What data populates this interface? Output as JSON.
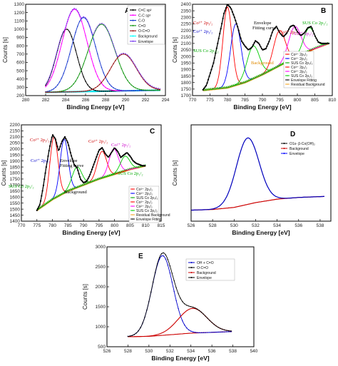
{
  "chart_data": [
    {
      "panel": "A",
      "type": "line",
      "title": "",
      "xlabel": "Binding Energy [eV]",
      "ylabel": "Counts [s]",
      "xlim": [
        280,
        294
      ],
      "ylim": [
        200,
        1300
      ],
      "xticks": [
        280,
        282,
        284,
        286,
        288,
        290,
        292,
        294
      ],
      "yticks": [
        200,
        300,
        400,
        500,
        600,
        700,
        800,
        900,
        1000,
        1100,
        1200,
        1300
      ],
      "legend_position": "top-right",
      "background_color": "#00ffff",
      "series": [
        {
          "name": "C=C  sp²",
          "color": "#000000",
          "kind": "gauss",
          "center": 284.1,
          "height": 1000,
          "sigma": 1.0
        },
        {
          "name": "C-C  sp³",
          "color": "#ff00ff",
          "kind": "gauss",
          "center": 284.9,
          "height": 1240,
          "sigma": 1.25
        },
        {
          "name": "C-O",
          "color": "#1f3fd0",
          "kind": "gauss",
          "center": 285.8,
          "height": 1140,
          "sigma": 1.2
        },
        {
          "name": "C=O",
          "color": "#1a9a1a",
          "kind": "gauss",
          "center": 287.6,
          "height": 1060,
          "sigma": 1.35
        },
        {
          "name": "O-C=O",
          "color": "#9b1b1b",
          "kind": "gauss",
          "center": 289.8,
          "height": 700,
          "sigma": 1.3
        },
        {
          "name": "Background",
          "color": "#00ffff",
          "kind": "background"
        },
        {
          "name": "Envelope",
          "color": "#7b3ff0",
          "kind": "envelope"
        }
      ]
    },
    {
      "panel": "B",
      "type": "line",
      "title": "",
      "xlabel": "Binding Energy [eV]",
      "ylabel": "Counts [s]",
      "xlim": [
        770,
        810
      ],
      "ylim": [
        1700,
        2400
      ],
      "xticks": [
        770,
        775,
        780,
        785,
        790,
        795,
        800,
        805,
        810
      ],
      "yticks": [
        1700,
        1750,
        1800,
        1850,
        1900,
        1950,
        2000,
        2050,
        2100,
        2150,
        2200,
        2250,
        2300,
        2350,
        2400
      ],
      "legend_position": "bottom-right",
      "background": {
        "x": [
          773,
          780,
          785,
          790,
          795,
          800,
          805,
          809
        ],
        "y": [
          1740,
          1760,
          1800,
          1860,
          1930,
          2000,
          2060,
          2100
        ]
      },
      "envelope": {
        "x": [
          773,
          774,
          776,
          778,
          779,
          780,
          781,
          782,
          783,
          784,
          785,
          786,
          787,
          788,
          789,
          790,
          791,
          792,
          793,
          794,
          795,
          796,
          797,
          798,
          799,
          800,
          801,
          802,
          803,
          804,
          805,
          806,
          807,
          808,
          809
        ],
        "y": [
          1745,
          1780,
          1950,
          2200,
          2330,
          2400,
          2370,
          2300,
          2220,
          2120,
          2080,
          2050,
          2070,
          2120,
          2100,
          2050,
          2060,
          2120,
          2200,
          2230,
          2180,
          2150,
          2180,
          2230,
          2240,
          2190,
          2160,
          2180,
          2220,
          2230,
          2160,
          2110,
          2100,
          2100,
          2100
        ]
      },
      "peaks": [
        {
          "name": "Co³⁺ 2p₃/₂",
          "color": "#ff0000",
          "center": 780.0,
          "height": 2380,
          "sigma": 1.3
        },
        {
          "name": "Co²⁺ 2p₃/₂",
          "color": "#0000ff",
          "center": 782.4,
          "height": 2250,
          "sigma": 1.5
        },
        {
          "name": "SUS Co 2p₃/₂",
          "color": "#00cc00",
          "center": 787.5,
          "height": 2080,
          "sigma": 1.8
        },
        {
          "name": "Co³⁺ 2p₁/₂",
          "color": "#ff0000",
          "center": 795.0,
          "height": 2200,
          "sigma": 1.7
        },
        {
          "name": "Co²⁺ 2p₁/₂",
          "color": "#ff00ff",
          "center": 799.4,
          "height": 2230,
          "sigma": 1.8
        },
        {
          "name": "SUS Co 2p₁/₂",
          "color": "#00cc00",
          "center": 803.5,
          "height": 2220,
          "sigma": 1.6
        }
      ],
      "legend_entries": [
        "Co³⁺ 2p₃/₂",
        "Co²⁺ 2p₃/₂",
        "SUS Co 2p₃/₂",
        "Co³⁺ 2p₁/₂",
        "Co²⁺ 2p₁/₂",
        "SUS Co 2p₁/₂",
        "Envelope Fitting",
        "Residual Background"
      ],
      "annotations": [
        "Co³⁺ 2p₃/₂",
        "Co²⁺ 2p₃/₂",
        "SUS Co 2p₃/₂",
        "Envelope\nFitting curve",
        "Co³⁺ 2p₁/₂",
        "Co²⁺ 2p₁/₂",
        "SUS Co 2p₁/₂",
        "Background"
      ]
    },
    {
      "panel": "C",
      "type": "line",
      "title": "",
      "xlabel": "Binding Energy [eV]",
      "ylabel": "Counts [s]",
      "xlim": [
        770,
        815
      ],
      "ylim": [
        1400,
        2200
      ],
      "xticks": [
        770,
        775,
        780,
        785,
        790,
        795,
        800,
        805,
        810,
        815
      ],
      "yticks": [
        1400,
        1450,
        1500,
        1550,
        1600,
        1650,
        1700,
        1750,
        1800,
        1850,
        1900,
        1950,
        2000,
        2050,
        2100,
        2150,
        2200
      ],
      "legend_position": "bottom-right",
      "background": {
        "x": [
          775,
          780,
          785,
          790,
          795,
          800,
          805,
          810
        ],
        "y": [
          1490,
          1580,
          1650,
          1700,
          1750,
          1790,
          1830,
          1860
        ]
      },
      "envelope": {
        "x": [
          775,
          776,
          777,
          778,
          779,
          780,
          781,
          782,
          783,
          784,
          785,
          786,
          787,
          788,
          789,
          790,
          791,
          792,
          793,
          794,
          795,
          796,
          797,
          798,
          799,
          800,
          801,
          802,
          803,
          804,
          805,
          806,
          807,
          808,
          809,
          810
        ],
        "y": [
          1490,
          1540,
          1680,
          1850,
          2000,
          2120,
          2080,
          1980,
          2060,
          2100,
          2050,
          1950,
          1870,
          1840,
          1750,
          1720,
          1730,
          1780,
          1850,
          1920,
          1990,
          2010,
          1960,
          1930,
          1970,
          2010,
          1980,
          1930,
          1950,
          1970,
          1940,
          1900,
          1880,
          1870,
          1860,
          1860
        ]
      },
      "peaks": [
        {
          "name": "Co³⁺ 2p₃/₂",
          "color": "#ff0000",
          "center": 780.5,
          "height": 2100,
          "sigma": 1.3
        },
        {
          "name": "Co²⁺ 2p₃/₂",
          "color": "#0000ff",
          "center": 783.8,
          "height": 2080,
          "sigma": 1.3
        },
        {
          "name": "SUS Co 2p₃/₂",
          "color": "#00cc00",
          "center": 788.0,
          "height": 1850,
          "sigma": 1.6
        },
        {
          "name": "Co³⁺ 2p₁/₂",
          "color": "#ff0000",
          "center": 796.0,
          "height": 1980,
          "sigma": 1.5
        },
        {
          "name": "Co²⁺ 2p₁/₂",
          "color": "#ff00ff",
          "center": 799.8,
          "height": 2000,
          "sigma": 1.5
        },
        {
          "name": "SUS Co 2p₁/₂",
          "color": "#00cc00",
          "center": 803.5,
          "height": 1940,
          "sigma": 1.5
        }
      ],
      "legend_entries": [
        "Co³⁺ 2p₃/₂",
        "Co²⁺ 2p₃/₂",
        "SUS Co 2p₃/₂",
        "Co³⁺ 2p₁/₂",
        "Co²⁺ 2p₁/₂",
        "SUS Co 2p₁/₂",
        "Residual Background",
        "Envelope Fitting"
      ],
      "annotations": [
        "Co³⁺ 2p₃/₂",
        "Co²⁺ 2p₃/₂",
        "Envelope\nFitting curve",
        "Co³⁺ 2p₁/₂",
        "Co²⁺ 2p₁/₂",
        "SUS Co 2p₁/₂",
        "SUS Co 2p₃/₂",
        "Background"
      ]
    },
    {
      "panel": "D",
      "type": "line",
      "title": "",
      "xlabel": "Binding Energy [eV]",
      "ylabel": "Counts [s]",
      "xlim": [
        526,
        539
      ],
      "ylim": [
        1000,
        2400
      ],
      "xticks": [
        526,
        528,
        530,
        532,
        534,
        536,
        538
      ],
      "yticks": [],
      "legend_position": "top-right",
      "series": [
        {
          "name": "O1s- β-Co(OH)₂",
          "color": "#000000",
          "kind": "peak",
          "center": 531.3,
          "height": 2210,
          "sigma": 1.05
        },
        {
          "name": "Background",
          "color": "#cc0000",
          "kind": "bg",
          "x": [
            526,
            528,
            530,
            532,
            534,
            536,
            538.5
          ],
          "y": [
            1160,
            1170,
            1200,
            1270,
            1320,
            1345,
            1360
          ]
        },
        {
          "name": "Envelope",
          "color": "#0000ff",
          "kind": "envelope"
        }
      ]
    },
    {
      "panel": "E",
      "type": "line",
      "title": "",
      "xlabel": "Binding Energy [eV]",
      "ylabel": "Counts [s]",
      "xlim": [
        526,
        540
      ],
      "ylim": [
        500,
        3000
      ],
      "xticks": [
        526,
        528,
        530,
        532,
        534,
        536,
        538,
        540
      ],
      "yticks": [
        500,
        1000,
        1500,
        2000,
        2500,
        3000
      ],
      "legend_position": "top-right",
      "series": [
        {
          "name": "OH + C=O",
          "color": "#0000cc",
          "kind": "peak",
          "center": 531.3,
          "height": 2780,
          "sigma": 1.0
        },
        {
          "name": "O-C=O",
          "color": "#cc0000",
          "kind": "peak",
          "center": 534.2,
          "height": 1460,
          "sigma": 1.35
        },
        {
          "name": "Background",
          "color": "#cc0000",
          "kind": "bg",
          "x": [
            528,
            530,
            532,
            534,
            536,
            538
          ],
          "y": [
            750,
            760,
            800,
            840,
            860,
            880
          ]
        },
        {
          "name": "Envelope",
          "color": "#000000",
          "kind": "envelope"
        }
      ]
    }
  ],
  "texts": {
    "A": {
      "letter": "A",
      "xlabel": "Binding Energy [eV]",
      "ylabel": "Counts [s]"
    },
    "B": {
      "letter": "B",
      "xlabel": "Binding Energy [eV]",
      "ylabel": "Counts [s]",
      "ann_co3": "Co³⁺ 2p₃/₂",
      "ann_co2": "Co²⁺ 2p₃/₂",
      "ann_sus": "SUS Co 2p₃/₂",
      "ann_env1": "Envelope",
      "ann_env2": "Fitting curve",
      "ann_co3b": "Co³⁺ 2p₁/₂",
      "ann_co2b": "Co²⁺ 2p₁/₂",
      "ann_susb": "SUS Co 2p₁/₂",
      "ann_bg": "Background"
    },
    "C": {
      "letter": "C",
      "xlabel": "Binding Energy [eV]",
      "ylabel": "Counts [s]",
      "ann_co3": "Co³⁺ 2p₃/₂",
      "ann_co2": "Co²⁺ 2p₃/₂",
      "ann_env1": "Envelope",
      "ann_env2": "Fitting curve",
      "ann_co3b": "Co³⁺ 2p₁/₂",
      "ann_co2b": "Co²⁺ 2p₁/₂",
      "ann_susb": "SUS Co 2p₁/₂",
      "ann_sus": "SUS Co 2p₃/₂",
      "ann_bg": "Background"
    },
    "D": {
      "letter": "D",
      "xlabel": "Binding Energy [eV]",
      "ylabel": "Counts [s]"
    },
    "E": {
      "letter": "E",
      "xlabel": "Binding Energy [eV]",
      "ylabel": "Counts [s]"
    }
  }
}
